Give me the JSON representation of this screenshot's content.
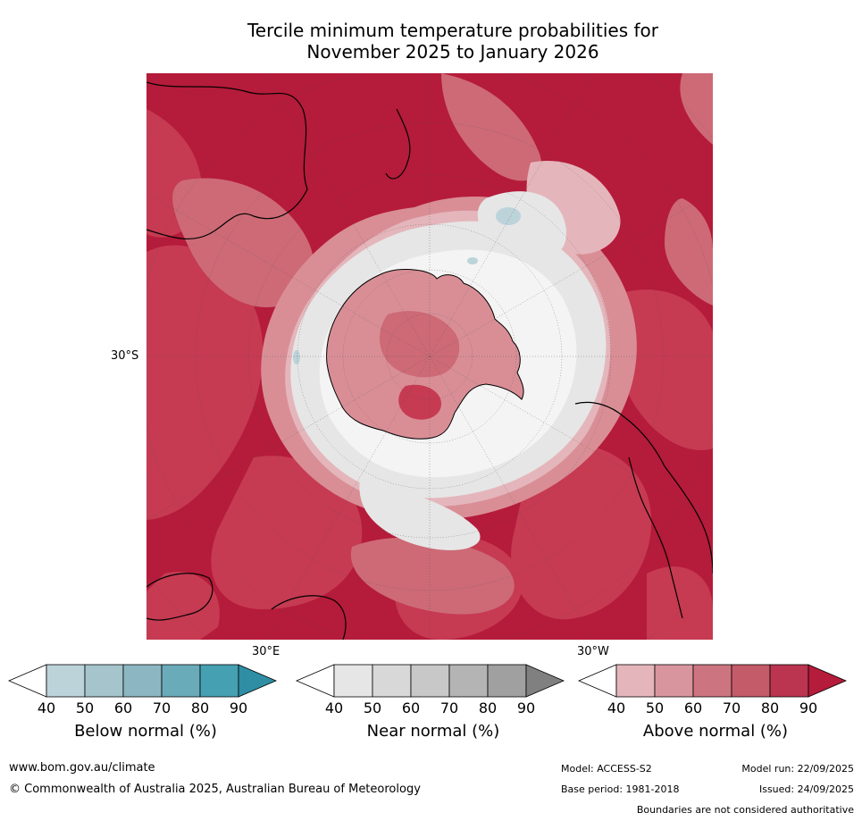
{
  "title": {
    "line1": "Tercile minimum temperature probabilities for",
    "line2": "November 2025 to January 2026"
  },
  "map": {
    "projection": "south-polar-stereographic",
    "axis_labels": {
      "left": "30°S",
      "bottom_left": "30°E",
      "bottom_right": "30°W"
    },
    "colors": {
      "ocean_above_90": "#b51b3a",
      "above_80": "#c63a52",
      "above_70": "#cd6a76",
      "above_60": "#d98e96",
      "above_50": "#e4b6bb",
      "near": "#e6e6e6",
      "below": "#bcd3da",
      "coast": "#000000"
    }
  },
  "legends": [
    {
      "title": "Below normal (%)",
      "ticks": [
        "40",
        "50",
        "60",
        "70",
        "80",
        "90"
      ],
      "colors": [
        "#bcd3da",
        "#a5c4cc",
        "#8cb7c2",
        "#6aabb9",
        "#45a0b2",
        "#2f8ea3"
      ]
    },
    {
      "title": "Near normal (%)",
      "ticks": [
        "40",
        "50",
        "60",
        "70",
        "80",
        "90"
      ],
      "colors": [
        "#e6e6e6",
        "#d8d8d8",
        "#c8c8c8",
        "#b4b4b4",
        "#a0a0a0",
        "#808080"
      ]
    },
    {
      "title": "Above normal (%)",
      "ticks": [
        "40",
        "50",
        "60",
        "70",
        "80",
        "90"
      ],
      "colors": [
        "#e4b6bb",
        "#d9959d",
        "#cc7580",
        "#c45b69",
        "#bb3450",
        "#b51b3a"
      ]
    }
  ],
  "footer": {
    "website": "www.bom.gov.au/climate",
    "copyright": "© Commonwealth of Australia 2025, Australian Bureau of Meteorology",
    "model": "Model: ACCESS-S2",
    "base_period": "Base period: 1981-2018",
    "model_run": "Model run: 22/09/2025",
    "issued": "Issued: 24/09/2025",
    "boundaries": "Boundaries are not considered authoritative"
  }
}
